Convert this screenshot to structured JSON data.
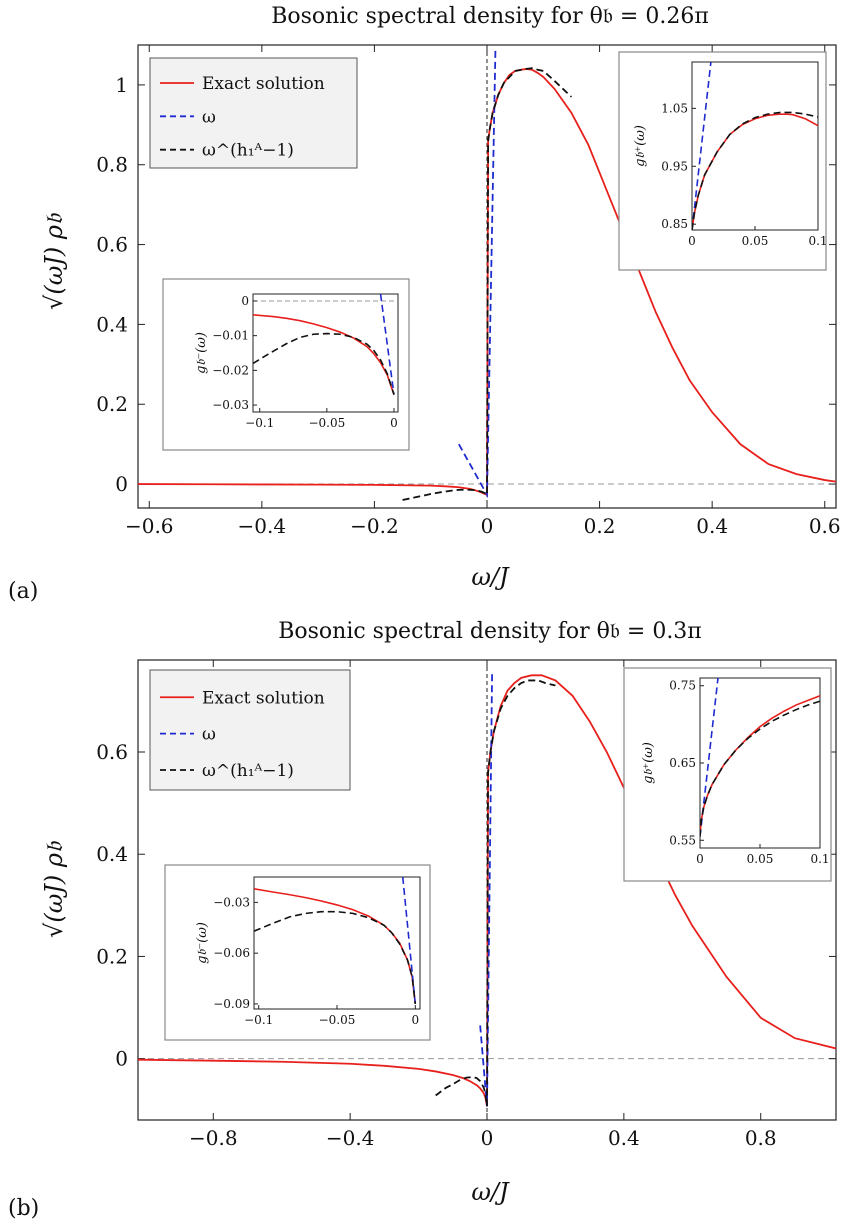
{
  "chart_data": [
    {
      "type": "line",
      "panel_label": "(a)",
      "title": "Bosonic spectral density for θ𝔟 = 0.26π",
      "xlabel": "ω/J",
      "ylabel": "√(ωJ) ρ𝔟",
      "xlim": [
        -0.62,
        0.62
      ],
      "ylim": [
        -0.06,
        1.1
      ],
      "xticks": [
        -0.6,
        -0.4,
        -0.2,
        0,
        0.2,
        0.4,
        0.6
      ],
      "xtick_labels": [
        "−0.6",
        "−0.4",
        "−0.2",
        "0",
        "0.2",
        "0.4",
        "0.6"
      ],
      "yticks": [
        0,
        0.2,
        0.4,
        0.6,
        0.8,
        1
      ],
      "ytick_labels": [
        "0",
        "0.2",
        "0.4",
        "0.6",
        "0.8",
        "1"
      ],
      "legend": {
        "placement": "top-left",
        "entries": [
          "Exact solution",
          "ω",
          "ω^(h₁ᴬ−1)"
        ]
      },
      "series": [
        {
          "name": "Exact solution",
          "color": "#e8201c",
          "dash": "solid",
          "x": [
            -0.62,
            -0.5,
            -0.4,
            -0.3,
            -0.2,
            -0.15,
            -0.1,
            -0.07,
            -0.05,
            -0.03,
            -0.02,
            -0.01,
            -0.005,
            0,
            0.002,
            0.005,
            0.01,
            0.02,
            0.03,
            0.04,
            0.05,
            0.06,
            0.07,
            0.08,
            0.09,
            0.1,
            0.12,
            0.15,
            0.18,
            0.2,
            0.22,
            0.24,
            0.26,
            0.28,
            0.3,
            0.33,
            0.36,
            0.4,
            0.45,
            0.5,
            0.55,
            0.6,
            0.62
          ],
          "y": [
            0,
            -0.0005,
            -0.001,
            -0.0015,
            -0.002,
            -0.003,
            -0.004,
            -0.006,
            -0.008,
            -0.012,
            -0.016,
            -0.021,
            -0.024,
            -0.027,
            0.86,
            0.89,
            0.93,
            0.975,
            1.005,
            1.025,
            1.035,
            1.038,
            1.04,
            1.038,
            1.03,
            1.02,
            0.99,
            0.93,
            0.85,
            0.78,
            0.71,
            0.64,
            0.57,
            0.5,
            0.43,
            0.34,
            0.26,
            0.18,
            0.1,
            0.05,
            0.025,
            0.01,
            0.006
          ]
        },
        {
          "name": "ω",
          "color": "#1f2bd0",
          "dash": "dashed",
          "x": [
            -0.05,
            0,
            0.015
          ],
          "y": [
            0.1,
            -0.027,
            1.09
          ]
        },
        {
          "name": "ω^(h₁ᴬ−1)",
          "color": "#111111",
          "dash": "dashed",
          "x": [
            -0.15,
            -0.12,
            -0.1,
            -0.08,
            -0.06,
            -0.05,
            -0.04,
            -0.03,
            -0.02,
            -0.01,
            -0.005,
            0,
            0.002,
            0.005,
            0.01,
            0.02,
            0.03,
            0.05,
            0.07,
            0.08,
            0.09,
            0.1,
            0.12,
            0.15
          ],
          "y": [
            -0.04,
            -0.031,
            -0.025,
            -0.02,
            -0.016,
            -0.0145,
            -0.014,
            -0.0145,
            -0.0155,
            -0.019,
            -0.022,
            -0.027,
            0.86,
            0.89,
            0.93,
            0.975,
            1.005,
            1.035,
            1.04,
            1.042,
            1.038,
            1.035,
            1.01,
            0.97
          ]
        }
      ],
      "insets": [
        {
          "name": "positive-inset",
          "placement": "top-right",
          "ylabel": "g𝔟⁺(ω)",
          "xlim": [
            0,
            0.1
          ],
          "ylim": [
            0.84,
            1.13
          ],
          "xticks": [
            0,
            0.05,
            0.1
          ],
          "xtick_labels": [
            "0",
            "0.05",
            "0.1"
          ],
          "yticks": [
            0.85,
            0.95,
            1.05
          ],
          "ytick_labels": [
            "0.85",
            "0.95",
            "1.05"
          ],
          "series": [
            {
              "name": "Exact solution",
              "color": "#e8201c",
              "dash": "solid",
              "x": [
                0,
                0.002,
                0.005,
                0.01,
                0.02,
                0.03,
                0.04,
                0.05,
                0.06,
                0.07,
                0.075,
                0.08,
                0.09,
                0.1
              ],
              "y": [
                0.84,
                0.87,
                0.9,
                0.935,
                0.975,
                1.005,
                1.022,
                1.032,
                1.038,
                1.04,
                1.04,
                1.039,
                1.032,
                1.02
              ]
            },
            {
              "name": "ω",
              "color": "#1f2bd0",
              "dash": "dashed",
              "x": [
                0,
                0.015
              ],
              "y": [
                0.84,
                1.13
              ]
            },
            {
              "name": "ω^(h₁ᴬ−1)",
              "color": "#111111",
              "dash": "dashed",
              "x": [
                0,
                0.002,
                0.005,
                0.01,
                0.02,
                0.03,
                0.04,
                0.05,
                0.06,
                0.07,
                0.08,
                0.09,
                0.1
              ],
              "y": [
                0.84,
                0.87,
                0.9,
                0.935,
                0.975,
                1.005,
                1.023,
                1.034,
                1.04,
                1.043,
                1.043,
                1.04,
                1.035
              ]
            }
          ]
        },
        {
          "name": "negative-inset",
          "placement": "middle-left",
          "ylabel": "g𝔟⁻(ω)",
          "xlim": [
            -0.105,
            0.003
          ],
          "ylim": [
            -0.032,
            0.002
          ],
          "xticks": [
            -0.1,
            -0.05,
            0
          ],
          "xtick_labels": [
            "−0.1",
            "−0.05",
            "0"
          ],
          "yticks": [
            0,
            -0.01,
            -0.02,
            -0.03
          ],
          "ytick_labels": [
            "0",
            "−0.01",
            "−0.02",
            "−0.03"
          ],
          "reference_line": 0,
          "series": [
            {
              "name": "Exact solution",
              "color": "#e8201c",
              "dash": "solid",
              "x": [
                -0.105,
                -0.09,
                -0.08,
                -0.07,
                -0.06,
                -0.05,
                -0.04,
                -0.03,
                -0.02,
                -0.015,
                -0.01,
                -0.005,
                -0.002,
                0
              ],
              "y": [
                -0.004,
                -0.0045,
                -0.005,
                -0.0057,
                -0.0066,
                -0.0077,
                -0.009,
                -0.0107,
                -0.0132,
                -0.0152,
                -0.0178,
                -0.0213,
                -0.0248,
                -0.027
              ]
            },
            {
              "name": "ω",
              "color": "#1f2bd0",
              "dash": "dashed",
              "x": [
                -0.01,
                0
              ],
              "y": [
                0.002,
                -0.027
              ]
            },
            {
              "name": "ω^(h₁ᴬ−1)",
              "color": "#111111",
              "dash": "dashed",
              "x": [
                -0.105,
                -0.09,
                -0.08,
                -0.07,
                -0.06,
                -0.05,
                -0.04,
                -0.03,
                -0.02,
                -0.015,
                -0.01,
                -0.005,
                -0.002,
                0
              ],
              "y": [
                -0.018,
                -0.0145,
                -0.0123,
                -0.0105,
                -0.0096,
                -0.0094,
                -0.0096,
                -0.0105,
                -0.0125,
                -0.0143,
                -0.017,
                -0.021,
                -0.0245,
                -0.027
              ]
            }
          ]
        }
      ]
    },
    {
      "type": "line",
      "panel_label": "(b)",
      "title": "Bosonic spectral density for θ𝔟 = 0.3π",
      "xlabel": "ω/J",
      "ylabel": "√(ωJ) ρ𝔟",
      "xlim": [
        -1.02,
        1.02
      ],
      "ylim": [
        -0.12,
        0.78
      ],
      "xticks": [
        -0.8,
        -0.4,
        0,
        0.4,
        0.8
      ],
      "xtick_labels": [
        "−0.8",
        "−0.4",
        "0",
        "0.4",
        "0.8"
      ],
      "yticks": [
        0,
        0.2,
        0.4,
        0.6
      ],
      "ytick_labels": [
        "0",
        "0.2",
        "0.4",
        "0.6"
      ],
      "legend": {
        "placement": "top-left",
        "entries": [
          "Exact solution",
          "ω",
          "ω^(h₁ᴬ−1)"
        ]
      },
      "series": [
        {
          "name": "Exact solution",
          "color": "#e8201c",
          "dash": "solid",
          "x": [
            -1.02,
            -0.8,
            -0.6,
            -0.4,
            -0.3,
            -0.2,
            -0.15,
            -0.1,
            -0.07,
            -0.05,
            -0.03,
            -0.02,
            -0.01,
            -0.005,
            0,
            0.003,
            0.01,
            0.02,
            0.04,
            0.06,
            0.08,
            0.1,
            0.13,
            0.16,
            0.2,
            0.25,
            0.3,
            0.35,
            0.4,
            0.45,
            0.5,
            0.55,
            0.6,
            0.7,
            0.8,
            0.9,
            1.02
          ],
          "y": [
            -0.002,
            -0.004,
            -0.006,
            -0.01,
            -0.014,
            -0.02,
            -0.025,
            -0.032,
            -0.038,
            -0.044,
            -0.052,
            -0.058,
            -0.067,
            -0.075,
            -0.093,
            0.56,
            0.6,
            0.64,
            0.69,
            0.72,
            0.735,
            0.745,
            0.75,
            0.75,
            0.74,
            0.71,
            0.66,
            0.6,
            0.53,
            0.46,
            0.39,
            0.32,
            0.26,
            0.16,
            0.08,
            0.04,
            0.02
          ]
        },
        {
          "name": "ω",
          "color": "#1f2bd0",
          "dash": "dashed",
          "x": [
            -0.02,
            0,
            0.015
          ],
          "y": [
            0.065,
            -0.093,
            0.76
          ]
        },
        {
          "name": "ω^(h₁ᴬ−1)",
          "color": "#111111",
          "dash": "dashed",
          "x": [
            -0.15,
            -0.12,
            -0.1,
            -0.08,
            -0.06,
            -0.04,
            -0.03,
            -0.02,
            -0.01,
            -0.005,
            0,
            0.003,
            0.01,
            0.02,
            0.04,
            0.06,
            0.08,
            0.1,
            0.12,
            0.15,
            0.17,
            0.2
          ],
          "y": [
            -0.072,
            -0.057,
            -0.05,
            -0.042,
            -0.037,
            -0.036,
            -0.038,
            -0.044,
            -0.056,
            -0.067,
            -0.093,
            0.56,
            0.6,
            0.64,
            0.685,
            0.71,
            0.725,
            0.735,
            0.74,
            0.74,
            0.735,
            0.73
          ]
        }
      ],
      "insets": [
        {
          "name": "positive-inset",
          "placement": "top-right",
          "ylabel": "g𝔟⁺(ω)",
          "xlim": [
            0,
            0.1
          ],
          "ylim": [
            0.54,
            0.76
          ],
          "xticks": [
            0,
            0.05,
            0.1
          ],
          "xtick_labels": [
            "0",
            "0.05",
            "0.1"
          ],
          "yticks": [
            0.55,
            0.65,
            0.75
          ],
          "ytick_labels": [
            "0.55",
            "0.65",
            "0.75"
          ],
          "series": [
            {
              "name": "Exact solution",
              "color": "#e8201c",
              "dash": "solid",
              "x": [
                0,
                0.001,
                0.003,
                0.006,
                0.01,
                0.02,
                0.03,
                0.04,
                0.05,
                0.06,
                0.07,
                0.08,
                0.09,
                0.1
              ],
              "y": [
                0.555,
                0.575,
                0.592,
                0.607,
                0.622,
                0.648,
                0.667,
                0.683,
                0.697,
                0.708,
                0.717,
                0.725,
                0.731,
                0.737
              ]
            },
            {
              "name": "ω",
              "color": "#1f2bd0",
              "dash": "dashed",
              "x": [
                0,
                0.015
              ],
              "y": [
                0.555,
                0.76
              ]
            },
            {
              "name": "ω^(h₁ᴬ−1)",
              "color": "#111111",
              "dash": "dashed",
              "x": [
                0,
                0.001,
                0.003,
                0.006,
                0.01,
                0.02,
                0.03,
                0.04,
                0.05,
                0.06,
                0.07,
                0.08,
                0.09,
                0.1
              ],
              "y": [
                0.555,
                0.575,
                0.592,
                0.607,
                0.622,
                0.648,
                0.667,
                0.682,
                0.694,
                0.704,
                0.712,
                0.719,
                0.725,
                0.73
              ]
            }
          ]
        },
        {
          "name": "negative-inset",
          "placement": "middle-left",
          "ylabel": "g𝔟⁻(ω)",
          "xlim": [
            -0.103,
            0.003
          ],
          "ylim": [
            -0.093,
            -0.015
          ],
          "xticks": [
            -0.1,
            -0.05,
            0
          ],
          "xtick_labels": [
            "−0.1",
            "−0.05",
            "0"
          ],
          "yticks": [
            -0.03,
            -0.06,
            -0.09
          ],
          "ytick_labels": [
            "−0.03",
            "−0.06",
            "−0.09"
          ],
          "series": [
            {
              "name": "Exact solution",
              "color": "#e8201c",
              "dash": "solid",
              "x": [
                -0.103,
                -0.09,
                -0.08,
                -0.07,
                -0.06,
                -0.05,
                -0.04,
                -0.03,
                -0.02,
                -0.015,
                -0.01,
                -0.005,
                -0.002,
                0
              ],
              "y": [
                -0.022,
                -0.024,
                -0.0255,
                -0.0272,
                -0.0292,
                -0.0315,
                -0.0343,
                -0.038,
                -0.0435,
                -0.048,
                -0.054,
                -0.064,
                -0.074,
                -0.09
              ]
            },
            {
              "name": "ω",
              "color": "#1f2bd0",
              "dash": "dashed",
              "x": [
                -0.008,
                0
              ],
              "y": [
                -0.015,
                -0.09
              ]
            },
            {
              "name": "ω^(h₁ᴬ−1)",
              "color": "#111111",
              "dash": "dashed",
              "x": [
                -0.103,
                -0.09,
                -0.08,
                -0.07,
                -0.06,
                -0.05,
                -0.04,
                -0.03,
                -0.02,
                -0.015,
                -0.01,
                -0.005,
                -0.002,
                0
              ],
              "y": [
                -0.047,
                -0.042,
                -0.0385,
                -0.0365,
                -0.0355,
                -0.0355,
                -0.0365,
                -0.039,
                -0.0435,
                -0.048,
                -0.0545,
                -0.064,
                -0.074,
                -0.09
              ]
            }
          ]
        }
      ]
    }
  ]
}
